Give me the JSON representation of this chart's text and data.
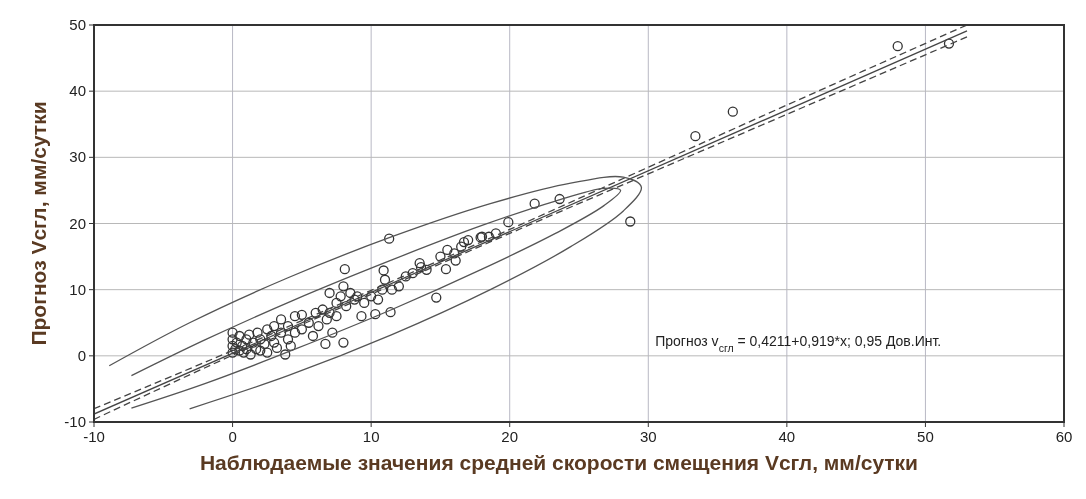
{
  "chart_data": {
    "type": "scatter",
    "xlabel": "Наблюдаемые значения средней скорости смещения Vсгл, мм/сутки",
    "ylabel": "Прогноз Vсгл, мм/сутки",
    "xlim": [
      -10,
      60
    ],
    "xticks": [
      -10,
      0,
      10,
      20,
      30,
      40,
      50,
      60
    ],
    "ylim": [
      -10,
      50
    ],
    "yticks": [
      -10,
      0,
      10,
      20,
      30,
      40,
      50
    ],
    "grid": true,
    "marker": "circle",
    "annotations": [
      "Прогноз v$_{сгл}$ = 0,4211+0,919*x; 0,95 Дов.Инт."
    ],
    "series": [
      {
        "color": "#333333",
        "x": [
          0,
          0,
          0,
          0,
          0.2,
          0.3,
          0.5,
          0.5,
          0.7,
          0.8,
          1,
          1,
          1.2,
          1.3,
          1.5,
          1.7,
          1.8,
          2,
          2,
          2.3,
          2.5,
          2.5,
          2.8,
          3,
          3,
          3.2,
          3.5,
          3.5,
          3.8,
          4,
          4,
          4.2,
          4.5,
          4.5,
          5,
          5,
          5.5,
          5.8,
          6,
          6.2,
          6.5,
          6.8,
          7,
          7,
          7.2,
          7.5,
          7.5,
          7.8,
          8,
          8.2,
          8.5,
          8.8,
          9,
          9.3,
          9.5,
          10,
          10.5,
          10.8,
          11,
          11.5,
          12,
          12.5,
          13,
          13.5,
          14,
          15,
          15.5,
          16,
          16.5,
          17,
          18,
          18.5,
          19,
          11.3,
          8.1,
          10.9,
          14.7,
          11.4,
          10.3,
          6.7,
          8,
          13.6,
          15.4,
          16.1,
          16.7,
          17.9,
          19.9,
          21.8,
          23.6,
          28.7,
          33.4,
          36.1,
          48,
          51.7
        ],
        "values": [
          0.5,
          1.5,
          2.5,
          3.5,
          1,
          2,
          0.8,
          3,
          1.5,
          0.5,
          2.5,
          1,
          3.2,
          0.2,
          2,
          1,
          3.5,
          2.5,
          0.8,
          1.8,
          4,
          0.5,
          3,
          2,
          4.5,
          1.2,
          3.5,
          5.5,
          0.2,
          2.5,
          4.5,
          1.5,
          6,
          3.5,
          6.2,
          4,
          5,
          3,
          6.5,
          4.5,
          7,
          5.5,
          9.5,
          6.5,
          3.5,
          8,
          6,
          9,
          10.5,
          7.5,
          9.5,
          8.5,
          9,
          6,
          8,
          9,
          8.5,
          10,
          11.5,
          10,
          10.5,
          12,
          12.5,
          14,
          13,
          15,
          16,
          15.5,
          16.5,
          17.5,
          18,
          18,
          18.5,
          17.7,
          13.1,
          12.9,
          8.8,
          6.6,
          6.3,
          1.8,
          2,
          13.4,
          13.1,
          14.4,
          17.2,
          17.9,
          20.2,
          23,
          23.7,
          20.3,
          33.2,
          36.9,
          46.8,
          47.2
        ]
      },
      {
        "type": "line",
        "color": "#444444",
        "line_style": "solid",
        "marker": "none",
        "x": [
          -10,
          53
        ],
        "values": [
          -8.8,
          49.1
        ]
      },
      {
        "type": "line",
        "color": "#444444",
        "line_style": "dashed",
        "marker": "none",
        "x": [
          -10,
          0,
          10,
          20,
          30,
          40,
          53
        ],
        "values": [
          -9.6,
          0.1,
          9.3,
          18.5,
          27.5,
          36.5,
          48.2
        ]
      },
      {
        "type": "line",
        "color": "#444444",
        "line_style": "dashed",
        "marker": "none",
        "x": [
          -10,
          0,
          10,
          20,
          30,
          40,
          53
        ],
        "values": [
          -8.0,
          0.8,
          9.9,
          19.1,
          28.5,
          37.9,
          50.0
        ]
      },
      {
        "type": "line",
        "color": "#555555",
        "line_style": "solid",
        "marker": "none",
        "x": [
          -3.1,
          4,
          11.5,
          18.6,
          24.4,
          28.2,
          29.5,
          28.2,
          24.4,
          18.6,
          11.5,
          4,
          -3.1,
          -8.9
        ],
        "values": [
          -8,
          -3,
          3.2,
          10,
          16.5,
          21.9,
          25.5,
          27,
          26.1,
          23,
          18,
          11.8,
          5,
          -1.5
        ]
      },
      {
        "type": "line",
        "color": "#555555",
        "line_style": "solid",
        "marker": "none",
        "x": [
          -7.3,
          -2,
          4.5,
          11.5,
          18,
          23.3,
          26.8,
          28,
          26.8,
          23.3,
          18,
          11.5,
          4.5,
          -2,
          -7.3
        ],
        "values": [
          -7.9,
          -4.2,
          1,
          7,
          13.1,
          18.5,
          22.7,
          25,
          25.3,
          23.4,
          19.7,
          14.5,
          8.5,
          2.4,
          -3
        ]
      }
    ]
  }
}
